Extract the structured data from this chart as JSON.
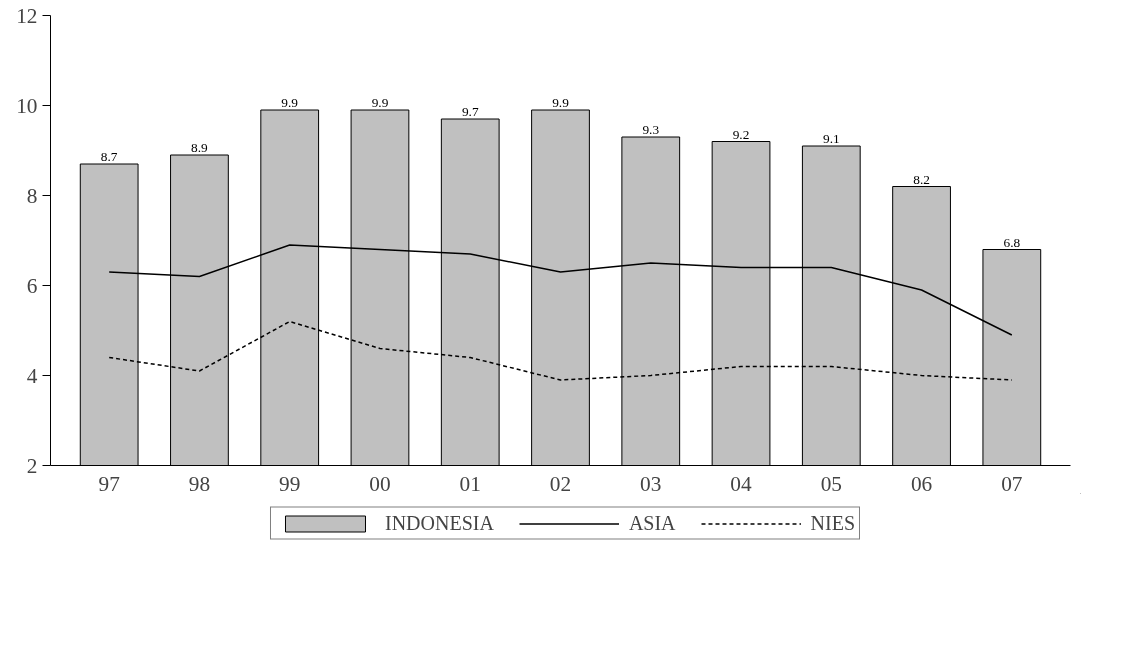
{
  "chart_data": {
    "type": "bar",
    "categories": [
      "97",
      "98",
      "99",
      "00",
      "01",
      "02",
      "03",
      "04",
      "05",
      "06",
      "07"
    ],
    "series": [
      {
        "name": "INDONESIA",
        "color": "#c0c0c0",
        "values": [
          8.7,
          8.9,
          9.9,
          9.9,
          9.7,
          9.9,
          9.3,
          9.2,
          9.1,
          8.2,
          6.8
        ],
        "value_labels": [
          "8.7",
          "8.9",
          "9.9",
          "9.9",
          "9.7",
          "9.9",
          "9.3",
          "9.2",
          "9.1",
          "8.2",
          "6.8"
        ]
      },
      {
        "name": "ASIA",
        "type": "line",
        "line_style": "solid",
        "color": "#000000",
        "values": [
          6.3,
          6.2,
          6.9,
          6.8,
          6.7,
          6.3,
          6.5,
          6.4,
          6.4,
          5.9,
          4.9
        ]
      },
      {
        "name": "NIES",
        "type": "line",
        "line_style": "dashed",
        "color": "#000000",
        "values": [
          4.4,
          4.1,
          5.2,
          4.6,
          4.4,
          3.9,
          4.0,
          4.2,
          4.2,
          4.0,
          3.9
        ]
      }
    ],
    "ylim": [
      2,
      12
    ],
    "yticks": [
      2,
      4,
      6,
      8,
      10,
      12
    ],
    "grid": false,
    "legend": "bottom",
    "marker": "none"
  }
}
